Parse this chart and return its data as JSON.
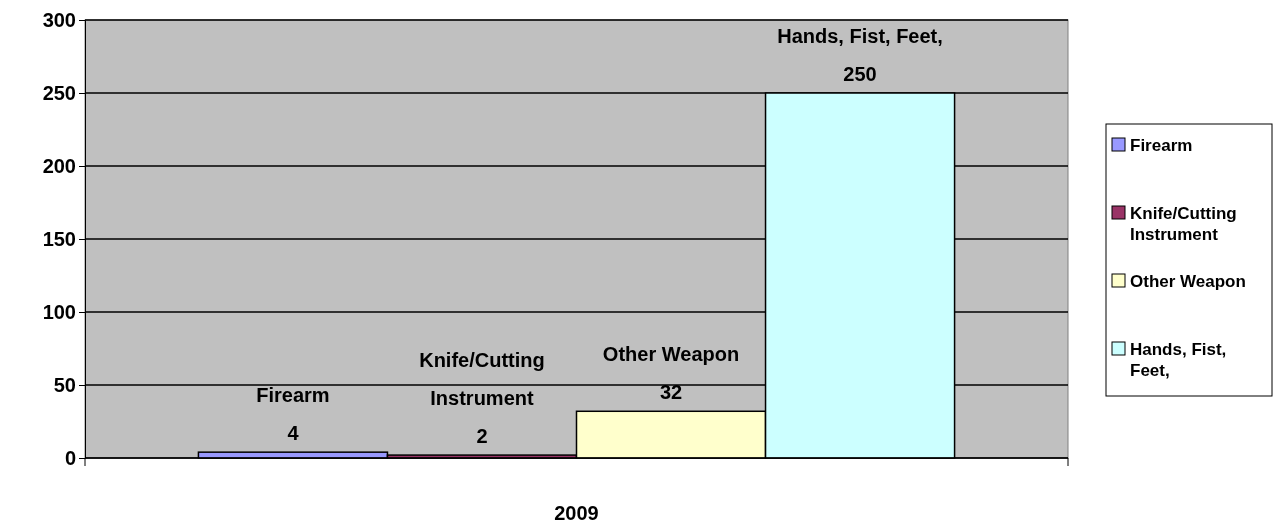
{
  "chart_data": {
    "type": "bar",
    "categories": [
      "2009"
    ],
    "series": [
      {
        "name": "Firearm",
        "color": "#9999ff",
        "values": [
          4
        ]
      },
      {
        "name": "Knife/Cutting Instrument",
        "color": "#993366",
        "values": [
          2
        ]
      },
      {
        "name": "Other Weapon",
        "color": "#ffffcc",
        "values": [
          32
        ]
      },
      {
        "name": "Hands, Fist, Feet,",
        "color": "#ccffff",
        "values": [
          250
        ]
      }
    ],
    "ylim": [
      0,
      300
    ],
    "yticks": [
      0,
      50,
      100,
      150,
      200,
      250,
      300
    ],
    "grid": "y",
    "legend": "right",
    "data_labels": true
  }
}
